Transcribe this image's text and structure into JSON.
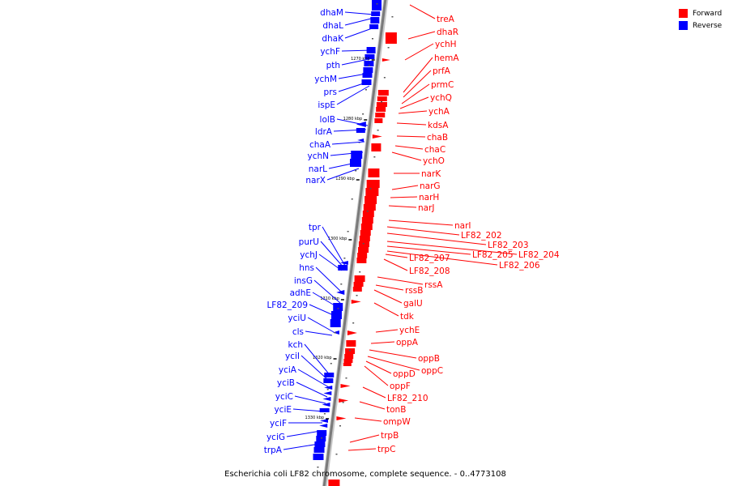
{
  "legend": [
    {
      "label": "Forward",
      "color": "#ff0000"
    },
    {
      "label": "Reverse",
      "color": "#0000ff"
    }
  ],
  "caption": "Escherichia coli LF82 chromosome, complete sequence. - 0..4773108",
  "ticks": [
    "1270 kbp",
    "1280 kbp",
    "1290 kbp",
    "1300 kbp",
    "1310 kbp",
    "1320 kbp",
    "1330 kbp"
  ],
  "reverse_genes": [
    "dhaM",
    "dhaL",
    "dhaK",
    "ychF",
    "pth",
    "ychM",
    "prs",
    "ispE",
    "lolB",
    "ldrA",
    "chaA",
    "ychN",
    "narL",
    "narX",
    "tpr",
    "purU",
    "ychJ",
    "hns",
    "insG",
    "adhE",
    "LF82_209",
    "yciU",
    "cls",
    "kch",
    "yciI",
    "yciA",
    "yciB",
    "yciC",
    "yciE",
    "yciF",
    "yciG",
    "trpA"
  ],
  "forward_genes": [
    "treA",
    "dhaR",
    "ychH",
    "hemA",
    "prfA",
    "prmC",
    "ychQ",
    "ychA",
    "kdsA",
    "chaB",
    "chaC",
    "ychO",
    "narK",
    "narG",
    "narH",
    "narJ",
    "narI",
    "LF82_202",
    "LF82_203",
    "LF82_204",
    "LF82_205",
    "LF82_206",
    "LF82_207",
    "LF82_208",
    "rssA",
    "rssB",
    "galU",
    "tdk",
    "ychE",
    "oppA",
    "oppB",
    "oppC",
    "oppD",
    "oppF",
    "LF82_210",
    "tonB",
    "ompW",
    "trpB",
    "trpC"
  ],
  "colors": {
    "forward": "#ff0000",
    "reverse": "#0000ff",
    "axis": "#7a7a7a"
  }
}
